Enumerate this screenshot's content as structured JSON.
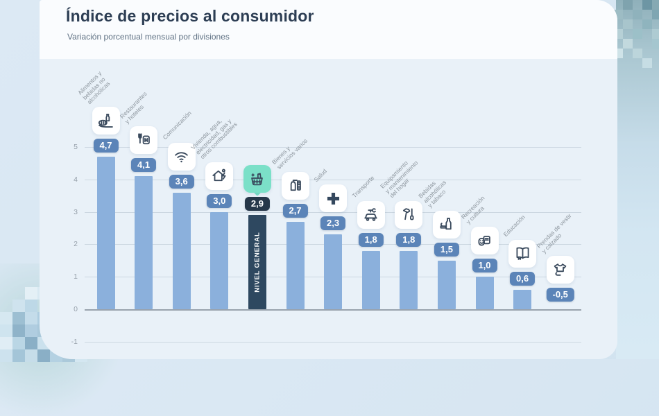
{
  "page": {
    "title": "Índice de precios al consumidor",
    "subtitle": "Variación porcentual mensual por divisiones"
  },
  "chart_data": {
    "type": "bar",
    "title": "Índice de precios al consumidor",
    "subtitle": "Variación porcentual mensual por divisiones",
    "xlabel": "",
    "ylabel": "",
    "ylim": [
      -1,
      5
    ],
    "yticks": [
      5,
      4,
      3,
      2,
      1,
      0,
      -1
    ],
    "grid": true,
    "categories": [
      "Alimentos y bebidas no alcohólicas",
      "Restaurantes y hoteles",
      "Comunicación",
      "Vivienda, agua, electricidad, gas y otros combustibles",
      "Nivel general",
      "Bienes y servicios varios",
      "Salud",
      "Transporte",
      "Equipamiento y mantenimiento del hogar",
      "Bebidas alcohólicas y tabaco",
      "Recreación y cultura",
      "Educación",
      "Prendas de vestir y calzado"
    ],
    "values": [
      4.7,
      4.1,
      3.6,
      3.0,
      2.9,
      2.7,
      2.3,
      1.8,
      1.8,
      1.5,
      1.0,
      0.6,
      -0.5
    ],
    "bars": [
      {
        "label_lines": "Alimentos y\nbebidas no\nalcohólicas",
        "value": 4.7,
        "display": "4,7",
        "icon": "food-icon",
        "highlight": false
      },
      {
        "label_lines": "Restaurantes\ny hoteles",
        "value": 4.1,
        "display": "4,1",
        "icon": "restaurant-hotel-icon",
        "highlight": false
      },
      {
        "label_lines": "Comunicación",
        "value": 3.6,
        "display": "3,6",
        "icon": "wifi-icon",
        "highlight": false
      },
      {
        "label_lines": "Vivienda, agua,\nelectricidad, gas y\notros combustibles",
        "value": 3.0,
        "display": "3,0",
        "icon": "housing-utilities-icon",
        "highlight": false
      },
      {
        "label_lines": "",
        "bar_label": "NIVEL GENERAL",
        "value": 2.9,
        "display": "2,9",
        "icon": "basket-icon",
        "highlight": true
      },
      {
        "label_lines": "Bienes y\nservicios varios",
        "value": 2.7,
        "display": "2,7",
        "icon": "toiletries-icon",
        "highlight": false
      },
      {
        "label_lines": "Salud",
        "value": 2.3,
        "display": "2,3",
        "icon": "health-cross-icon",
        "highlight": false
      },
      {
        "label_lines": "Transporte",
        "value": 1.8,
        "display": "1,8",
        "icon": "transport-car-icon",
        "highlight": false
      },
      {
        "label_lines": "Equipamiento\ny mantenimiento\ndel hogar",
        "value": 1.8,
        "display": "1,8",
        "icon": "tools-icon",
        "highlight": false
      },
      {
        "label_lines": "Bebidas\nalcohólicas\ny tabaco",
        "value": 1.5,
        "display": "1,5",
        "icon": "bottle-tobacco-icon",
        "highlight": false
      },
      {
        "label_lines": "Recreación\ny cultura",
        "value": 1.0,
        "display": "1,0",
        "icon": "culture-masks-icon",
        "highlight": false
      },
      {
        "label_lines": "Educación",
        "value": 0.6,
        "display": "0,6",
        "icon": "book-icon",
        "highlight": false
      },
      {
        "label_lines": "Prendas de vestir\ny calzado",
        "value": -0.5,
        "display": "-0,5",
        "icon": "clothing-icon",
        "highlight": false
      }
    ],
    "colors": {
      "bar": "#8bb0dc",
      "highlight_bar": "#2e4860",
      "badge": "#5b84b8",
      "highlight_badge": "#263749",
      "icon_card": "#ffffff",
      "highlight_icon_card": "#7be0c8",
      "icon_stroke": "#39495c",
      "title": "#2d3e54",
      "subtitle": "#5f7183"
    }
  }
}
